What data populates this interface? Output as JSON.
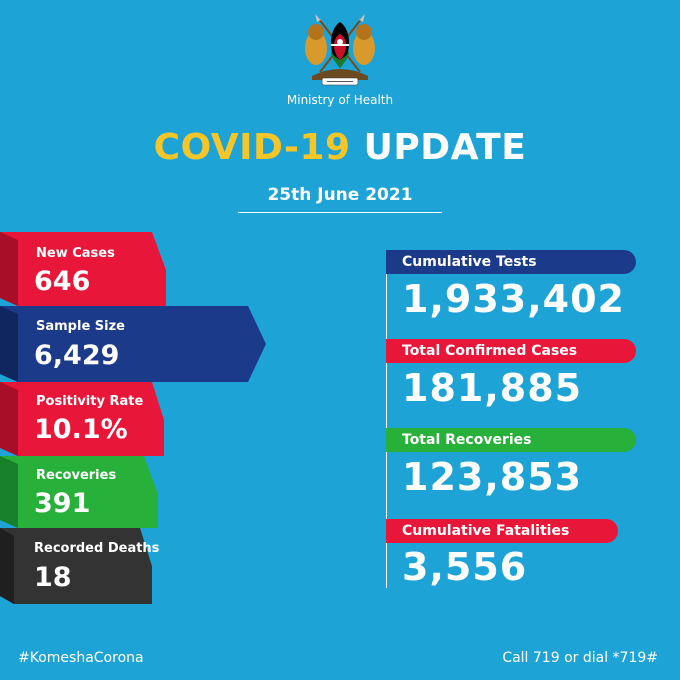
{
  "header": {
    "ministry": "Ministry of Health",
    "title_part1": "COVID-19",
    "title_part2": "UPDATE",
    "date": "25th June 2021"
  },
  "daily": [
    {
      "label": "New Cases",
      "value": "646",
      "color": "#e8173a"
    },
    {
      "label": "Sample Size",
      "value": "6,429",
      "color": "#1b3a8a"
    },
    {
      "label": "Positivity Rate",
      "value": "10.1%",
      "color": "#e8173a"
    },
    {
      "label": "Recoveries",
      "value": "391",
      "color": "#27b03a"
    },
    {
      "label": "Recorded Deaths",
      "value": "18",
      "color": "#3a3a3a"
    }
  ],
  "cumulative": [
    {
      "label": "Cumulative Tests",
      "value": "1,933,402",
      "color": "#1b3a8a"
    },
    {
      "label": "Total Confirmed Cases",
      "value": "181,885",
      "color": "#e8173a"
    },
    {
      "label": "Total Recoveries",
      "value": "123,853",
      "color": "#27b03a"
    },
    {
      "label": "Cumulative Fatalities",
      "value": "3,556",
      "color": "#e8173a"
    }
  ],
  "footer": {
    "hashtag": "#KomeshaCorona",
    "call": "Call 719 or dial *719#"
  }
}
